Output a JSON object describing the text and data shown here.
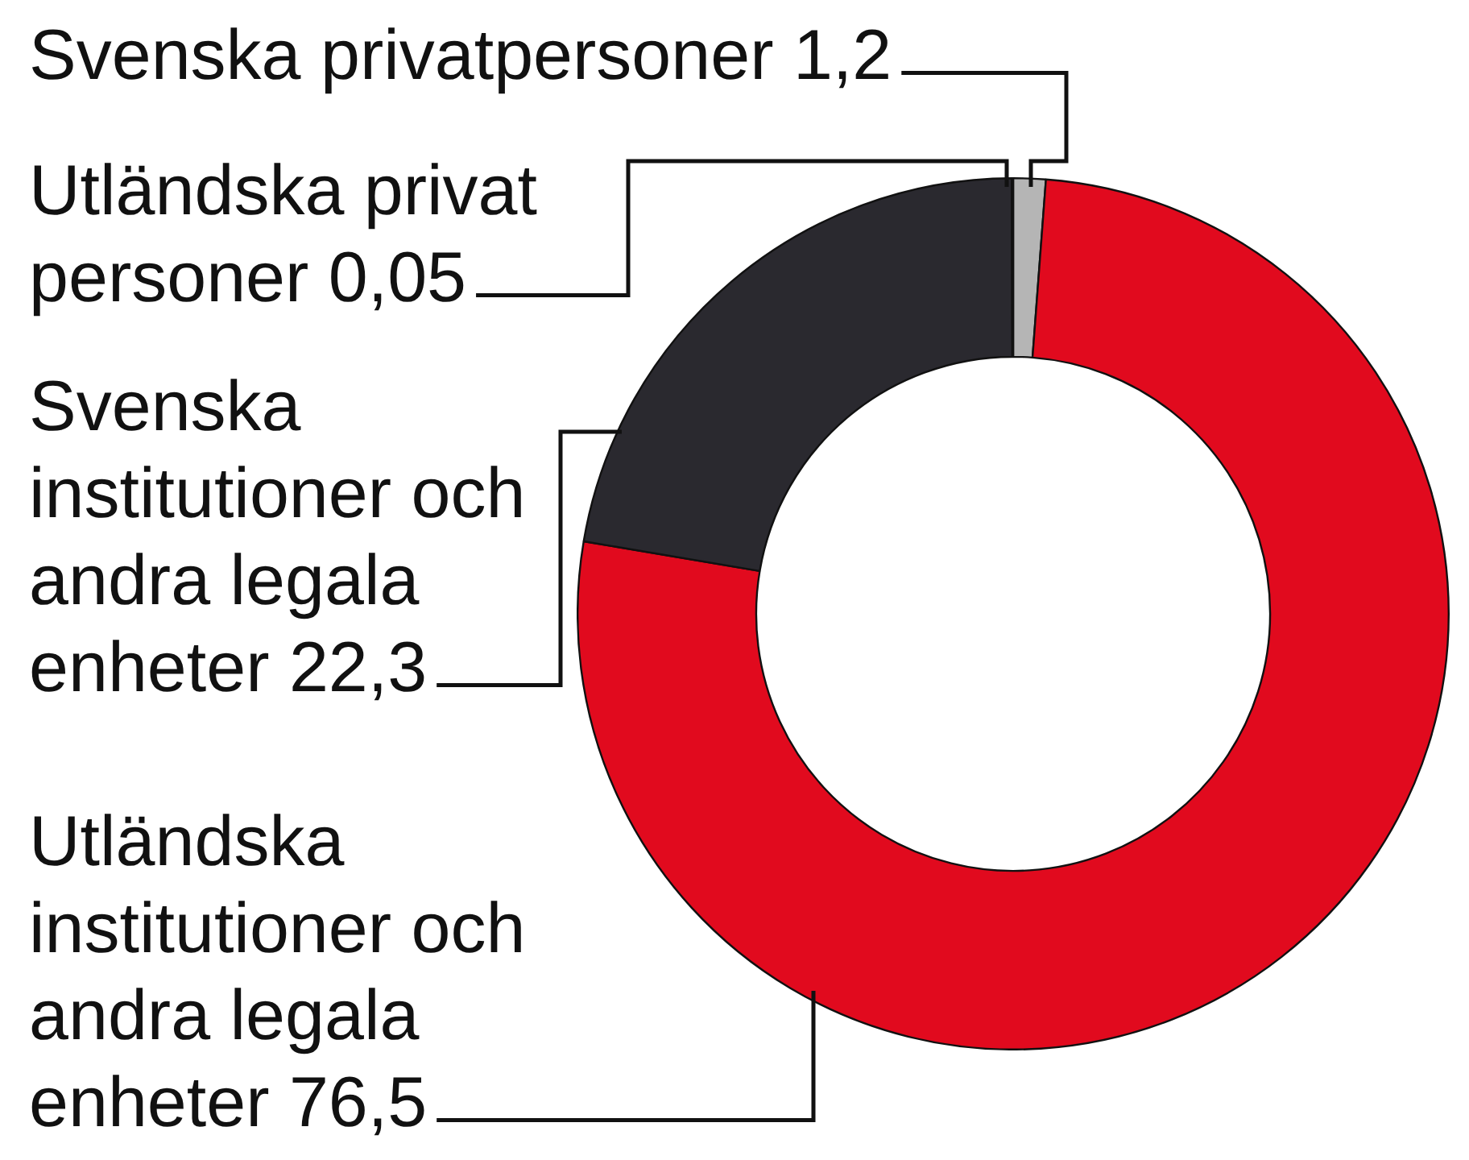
{
  "chart_data": {
    "type": "donut",
    "categories": [
      "Svenska privatpersoner",
      "Utländska institutioner och andra legala enheter",
      "Svenska institutioner och andra legala enheter",
      "Utländska privat personer"
    ],
    "values": [
      1.2,
      76.5,
      22.3,
      0.05
    ],
    "colors": [
      "#b5b5b5",
      "#e10a1e",
      "#2a292f",
      "#1a1a1a"
    ],
    "value_labels": [
      "1,2",
      "76,5",
      "22,3",
      "0,05"
    ],
    "legend": false
  }
}
